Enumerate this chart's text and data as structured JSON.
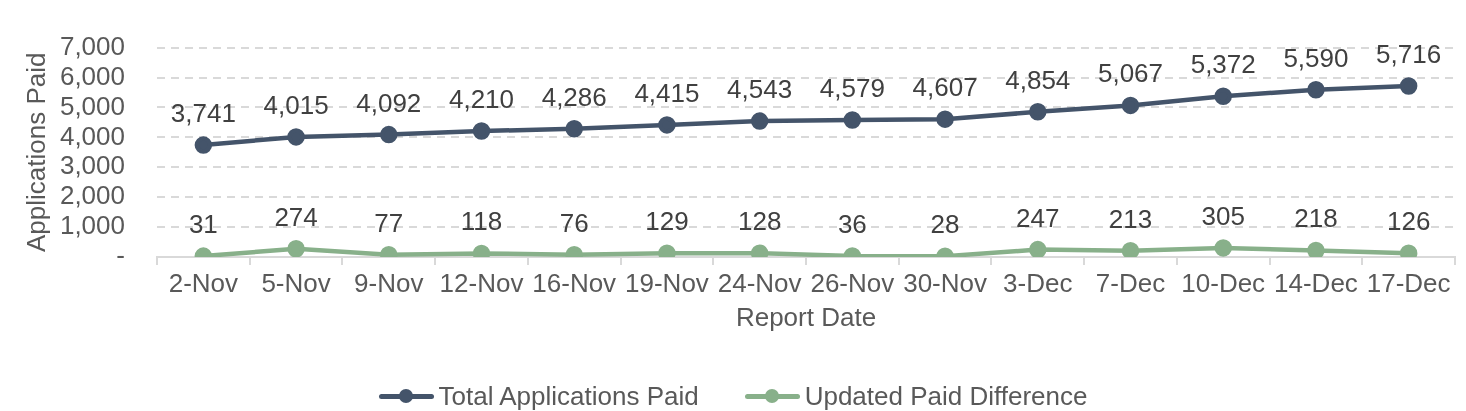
{
  "chart_data": {
    "type": "line",
    "categories": [
      "2-Nov",
      "5-Nov",
      "9-Nov",
      "12-Nov",
      "16-Nov",
      "19-Nov",
      "24-Nov",
      "26-Nov",
      "30-Nov",
      "3-Dec",
      "7-Dec",
      "10-Dec",
      "14-Dec",
      "17-Dec"
    ],
    "series": [
      {
        "name": "Total Applications Paid",
        "color": "#44546a",
        "values": [
          3741,
          4015,
          4092,
          4210,
          4286,
          4415,
          4543,
          4579,
          4607,
          4854,
          5067,
          5372,
          5590,
          5716
        ],
        "value_labels": [
          "3,741",
          "4,015",
          "4,092",
          "4,210",
          "4,286",
          "4,415",
          "4,543",
          "4,579",
          "4,607",
          "4,854",
          "5,067",
          "5,372",
          "5,590",
          "5,716"
        ]
      },
      {
        "name": "Updated Paid Difference",
        "color": "#88b08a",
        "values": [
          31,
          274,
          77,
          118,
          76,
          129,
          128,
          36,
          28,
          247,
          213,
          305,
          218,
          126
        ],
        "value_labels": [
          "31",
          "274",
          "77",
          "118",
          "76",
          "129",
          "128",
          "36",
          "28",
          "247",
          "213",
          "305",
          "218",
          "126"
        ]
      }
    ],
    "xlabel": "Report Date",
    "ylabel": "Applications Paid",
    "ylim": [
      0,
      7000
    ],
    "yticks": [
      {
        "value": 0,
        "label": "-"
      },
      {
        "value": 1000,
        "label": "1,000"
      },
      {
        "value": 2000,
        "label": "2,000"
      },
      {
        "value": 3000,
        "label": "3,000"
      },
      {
        "value": 4000,
        "label": "4,000"
      },
      {
        "value": 5000,
        "label": "5,000"
      },
      {
        "value": 6000,
        "label": "6,000"
      },
      {
        "value": 7000,
        "label": "7,000"
      }
    ],
    "grid": "y",
    "legend": "bottom",
    "marker": "circle",
    "line_style": "solid"
  }
}
